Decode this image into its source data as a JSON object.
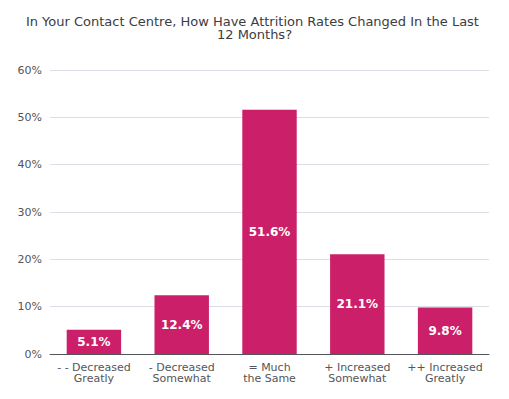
{
  "chart_data": {
    "type": "bar",
    "title": "In Your Contact Centre, How Have Attrition Rates Changed In the Last 12 Months?",
    "categories": [
      "- - Decreased\nGreatly",
      "- Decreased\nSomewhat",
      "= Much\nthe Same",
      "+ Increased\nSomewhat",
      "++ Increased\nGreatly"
    ],
    "values": [
      5.1,
      12.4,
      51.6,
      21.1,
      9.8
    ],
    "value_labels": [
      "5.1%",
      "12.4%",
      "51.6%",
      "21.1%",
      "9.8%"
    ],
    "data_labels": true,
    "color": "#CC1F6A",
    "ylim": [
      0,
      60
    ],
    "yticks": [
      {
        "value": 0,
        "label": "0%"
      },
      {
        "value": 10,
        "label": "10%"
      },
      {
        "value": 20,
        "label": "20%"
      },
      {
        "value": 30,
        "label": "30%"
      },
      {
        "value": 40,
        "label": "40%"
      },
      {
        "value": 50,
        "label": "50%"
      },
      {
        "value": 60,
        "label": "60%"
      }
    ],
    "grid": true
  }
}
